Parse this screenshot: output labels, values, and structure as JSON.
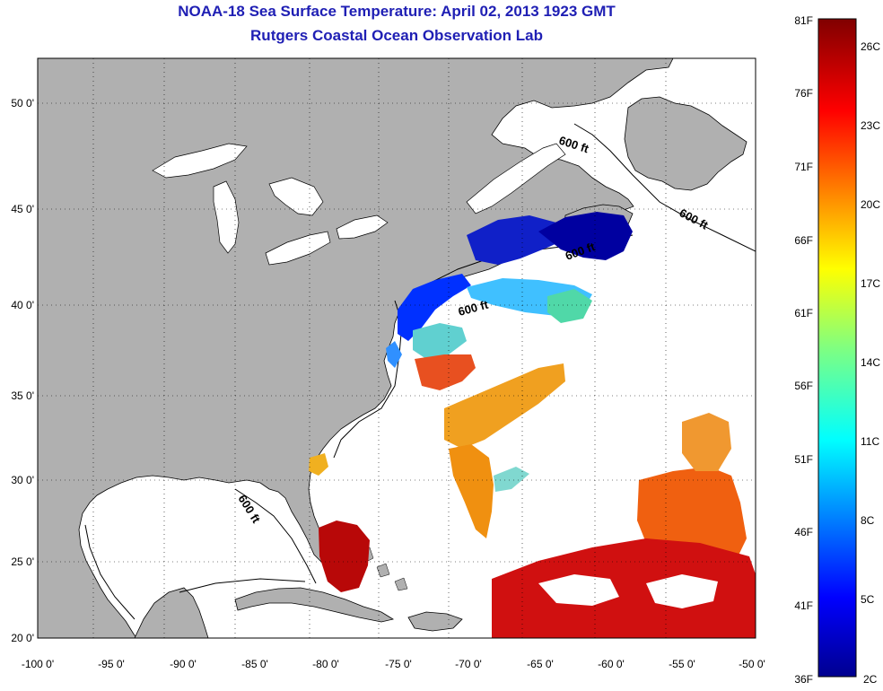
{
  "title": {
    "line1": "NOAA-18 Sea Surface Temperature:  April 02, 2013 1923 GMT",
    "line2": "Rutgers Coastal Ocean Observation Lab"
  },
  "colors": {
    "land": "#b0b0b0",
    "ocean": "#ffffff",
    "title": "#1f1fb4"
  },
  "axes": {
    "lat_labels": [
      "50 0'",
      "45 0'",
      "40 0'",
      "35 0'",
      "30 0'",
      "25 0'",
      "20 0'"
    ],
    "lon_labels": [
      "-100 0'",
      "-95 0'",
      "-90 0'",
      "-85 0'",
      "-80 0'",
      "-75 0'",
      "-70 0'",
      "-65 0'",
      "-60 0'",
      "-55 0'",
      "-50 0'"
    ],
    "grid": "dotted"
  },
  "contour_labels": [
    "600 ft",
    "600 ft",
    "600 ft",
    "600 ft",
    "600 ft"
  ],
  "colorbar": {
    "f_labels": [
      "81F",
      "76F",
      "71F",
      "66F",
      "61F",
      "56F",
      "51F",
      "46F",
      "41F",
      "36F"
    ],
    "c_labels": [
      "26C",
      "23C",
      "20C",
      "17C",
      "14C",
      "11C",
      "8C",
      "5C",
      "2C"
    ],
    "range_f": [
      36,
      81
    ],
    "range_c": [
      2,
      27
    ]
  }
}
